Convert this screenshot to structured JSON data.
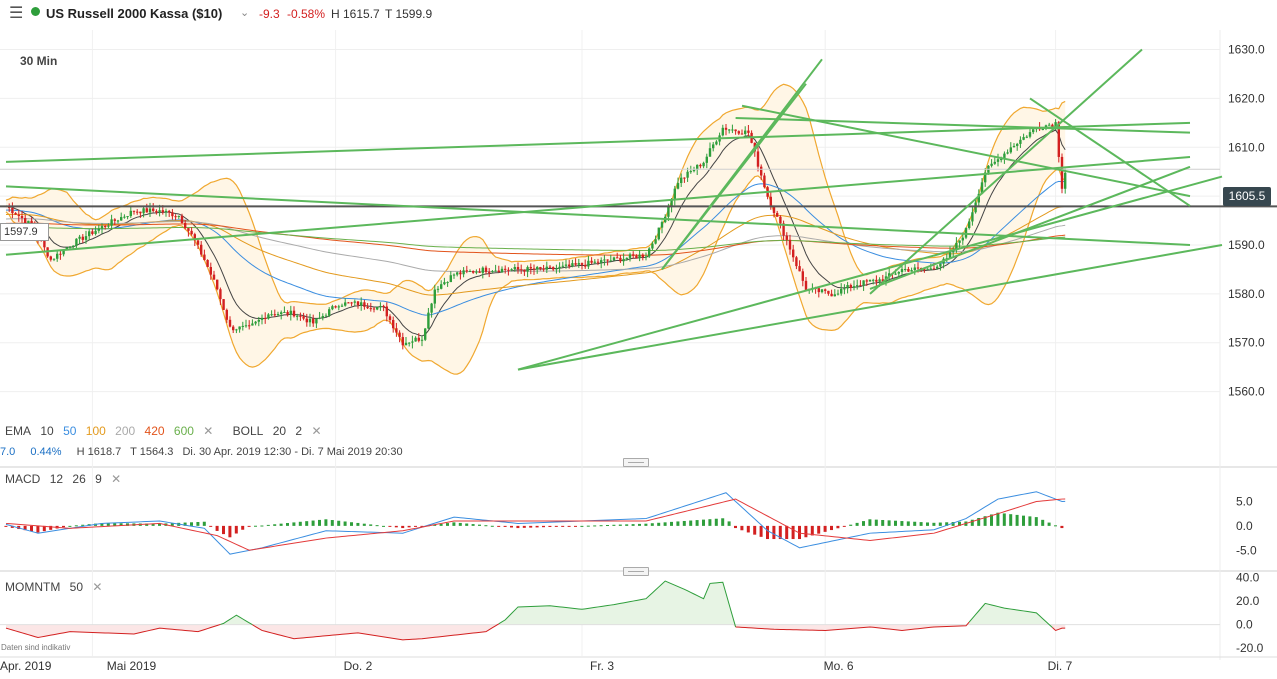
{
  "header": {
    "menu_icon": "hamburger-menu-icon",
    "status_color": "#2e9e3b",
    "title": "US Russell 2000 Kassa ($10)",
    "change": "-9.3",
    "change_pct": "-0.58%",
    "high": "H 1615.7",
    "low": "T 1599.9",
    "timeframe": "30 Min"
  },
  "price_labels": {
    "current": "1605.5",
    "hline": "1597.9"
  },
  "indicators": {
    "ema_label": "EMA",
    "ema_periods": [
      "10",
      "50",
      "100",
      "200",
      "420",
      "600"
    ],
    "ema_colors": [
      "#444444",
      "#3b8ee0",
      "#e39a1e",
      "#aaaaaa",
      "#e2541c",
      "#6ab04c"
    ],
    "boll_label": "BOLL",
    "boll_params": [
      "20",
      "2"
    ],
    "stats_line": [
      "7.0",
      "0.44%",
      "H 1618.7",
      "T 1564.3",
      "Di. 30 Apr. 2019 12:30 - Di. 7 Mai 2019 20:30"
    ],
    "macd_label": "MACD",
    "macd_params": [
      "12",
      "26",
      "9"
    ],
    "mom_label": "MOMNTM",
    "mom_params": [
      "50"
    ],
    "disclaimer": "Daten sind indikativ"
  },
  "colors": {
    "up": "#2e9e3b",
    "down": "#d32020",
    "trend": "#5cb85c",
    "boll": "#f0a830",
    "macd": "#3b8ee0",
    "signal": "#e33a3a"
  },
  "chart_data": [
    {
      "type": "candlestick",
      "title": "US Russell 2000 Kassa ($10)",
      "interval": "30 Min",
      "ylim": [
        1555,
        1634
      ],
      "y_ticks": [
        1560.0,
        1570.0,
        1580.0,
        1590.0,
        1600.0,
        1610.0,
        1620.0,
        1630.0
      ],
      "x_ticks": [
        "Apr. 2019",
        "Mai 2019",
        "Do. 2",
        "Fr. 3",
        "Mo. 6",
        "Di. 7"
      ],
      "close_path": [
        [
          0,
          1598
        ],
        [
          8,
          1594
        ],
        [
          14,
          1587
        ],
        [
          20,
          1590
        ],
        [
          28,
          1593
        ],
        [
          34,
          1595
        ],
        [
          40,
          1597
        ],
        [
          48,
          1597
        ],
        [
          54,
          1596
        ],
        [
          58,
          1592
        ],
        [
          62,
          1587
        ],
        [
          66,
          1581
        ],
        [
          70,
          1573
        ],
        [
          76,
          1573
        ],
        [
          82,
          1576
        ],
        [
          90,
          1576
        ],
        [
          96,
          1574
        ],
        [
          104,
          1578
        ],
        [
          110,
          1578
        ],
        [
          118,
          1577
        ],
        [
          124,
          1570
        ],
        [
          130,
          1571
        ],
        [
          134,
          1581
        ],
        [
          140,
          1584
        ],
        [
          150,
          1585
        ],
        [
          160,
          1585
        ],
        [
          170,
          1585
        ],
        [
          180,
          1586
        ],
        [
          190,
          1587
        ],
        [
          200,
          1588
        ],
        [
          204,
          1593
        ],
        [
          210,
          1603
        ],
        [
          218,
          1607
        ],
        [
          224,
          1614
        ],
        [
          232,
          1613
        ],
        [
          238,
          1600
        ],
        [
          244,
          1591
        ],
        [
          250,
          1581
        ],
        [
          258,
          1580
        ],
        [
          266,
          1582
        ],
        [
          274,
          1583
        ],
        [
          280,
          1585
        ],
        [
          288,
          1585
        ],
        [
          294,
          1587
        ],
        [
          300,
          1593
        ],
        [
          306,
          1605
        ],
        [
          314,
          1610
        ],
        [
          322,
          1614
        ],
        [
          328,
          1615
        ],
        [
          330,
          1602
        ],
        [
          331,
          1605
        ]
      ],
      "horizontal_line": 1597.9,
      "current_price": 1605.5,
      "day_high": 1615.7,
      "day_low": 1599.9,
      "period_high": 1618.7,
      "period_low": 1564.3,
      "change": -9.3,
      "change_pct": -0.58
    },
    {
      "type": "line",
      "title": "MACD 12 26 9",
      "ylim": [
        -7,
        9
      ],
      "y_ticks": [
        -5.0,
        0.0,
        5.0
      ],
      "series": [
        {
          "name": "MACD",
          "values": [
            [
              0,
              0.3
            ],
            [
              10,
              -1.5
            ],
            [
              30,
              0.5
            ],
            [
              48,
              1.0
            ],
            [
              62,
              -0.5
            ],
            [
              70,
              -5.8
            ],
            [
              80,
              -4.5
            ],
            [
              100,
              -1.0
            ],
            [
              124,
              -1.5
            ],
            [
              140,
              1.8
            ],
            [
              160,
              0.5
            ],
            [
              200,
              1.5
            ],
            [
              225,
              6.8
            ],
            [
              238,
              -1.0
            ],
            [
              248,
              -4.5
            ],
            [
              270,
              -1.5
            ],
            [
              290,
              -0.8
            ],
            [
              300,
              1.5
            ],
            [
              310,
              5.5
            ],
            [
              322,
              7.0
            ],
            [
              330,
              5.0
            ]
          ]
        },
        {
          "name": "Signal",
          "values": [
            [
              0,
              0.5
            ],
            [
              20,
              -0.5
            ],
            [
              48,
              0.5
            ],
            [
              66,
              -2.0
            ],
            [
              76,
              -5.0
            ],
            [
              100,
              -2.5
            ],
            [
              124,
              -1.0
            ],
            [
              140,
              1.0
            ],
            [
              200,
              1.0
            ],
            [
              228,
              5.5
            ],
            [
              248,
              -1.5
            ],
            [
              270,
              -3.0
            ],
            [
              290,
              -1.5
            ],
            [
              310,
              2.5
            ],
            [
              322,
              5.0
            ],
            [
              330,
              5.5
            ]
          ]
        }
      ]
    },
    {
      "type": "area",
      "title": "MOMNTM 50",
      "ylim": [
        -25,
        43
      ],
      "y_ticks": [
        -20.0,
        0.0,
        20.0,
        40.0
      ],
      "values": [
        [
          0,
          -3
        ],
        [
          10,
          -11
        ],
        [
          20,
          -6
        ],
        [
          40,
          -8
        ],
        [
          48,
          -3
        ],
        [
          60,
          -6
        ],
        [
          68,
          1
        ],
        [
          72,
          8
        ],
        [
          80,
          -5
        ],
        [
          90,
          -12
        ],
        [
          110,
          -7
        ],
        [
          124,
          -13
        ],
        [
          130,
          -12
        ],
        [
          140,
          -9
        ],
        [
          150,
          -6
        ],
        [
          156,
          4
        ],
        [
          160,
          15
        ],
        [
          170,
          16
        ],
        [
          180,
          13
        ],
        [
          190,
          17
        ],
        [
          200,
          22
        ],
        [
          206,
          37
        ],
        [
          212,
          30
        ],
        [
          218,
          22
        ],
        [
          220,
          35
        ],
        [
          224,
          36
        ],
        [
          228,
          -2
        ],
        [
          240,
          -4
        ],
        [
          256,
          -5
        ],
        [
          270,
          -2
        ],
        [
          280,
          -5
        ],
        [
          290,
          -2
        ],
        [
          300,
          -1
        ],
        [
          306,
          18
        ],
        [
          312,
          14
        ],
        [
          322,
          10
        ],
        [
          328,
          -5
        ],
        [
          330,
          -3
        ]
      ]
    }
  ]
}
